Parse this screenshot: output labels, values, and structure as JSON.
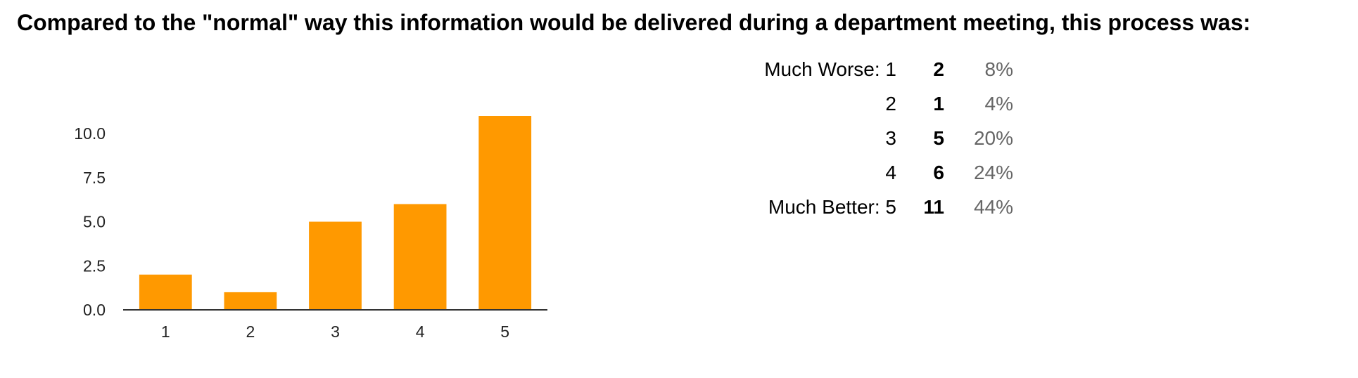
{
  "title": "Compared to the \"normal\" way this information would be delivered during a department meeting, this process was:",
  "bar_color": "#ff9900",
  "axis_color": "#333333",
  "chart_data": {
    "type": "bar",
    "title": "",
    "xlabel": "",
    "ylabel": "",
    "categories": [
      "1",
      "2",
      "3",
      "4",
      "5"
    ],
    "values": [
      2,
      1,
      5,
      6,
      11
    ],
    "ylim": [
      0,
      11
    ],
    "yticks": [
      0,
      2.5,
      5,
      7.5,
      10
    ],
    "ytick_labels": [
      "0.0",
      "2.5",
      "5.0",
      "7.5",
      "10.0"
    ],
    "grid": false,
    "legend": "none"
  },
  "summary": {
    "rows": [
      {
        "label": "Much Worse: 1",
        "count": "2",
        "percent": "8%"
      },
      {
        "label": "2",
        "count": "1",
        "percent": "4%"
      },
      {
        "label": "3",
        "count": "5",
        "percent": "20%"
      },
      {
        "label": "4",
        "count": "6",
        "percent": "24%"
      },
      {
        "label": "Much Better: 5",
        "count": "11",
        "percent": "44%"
      }
    ]
  }
}
